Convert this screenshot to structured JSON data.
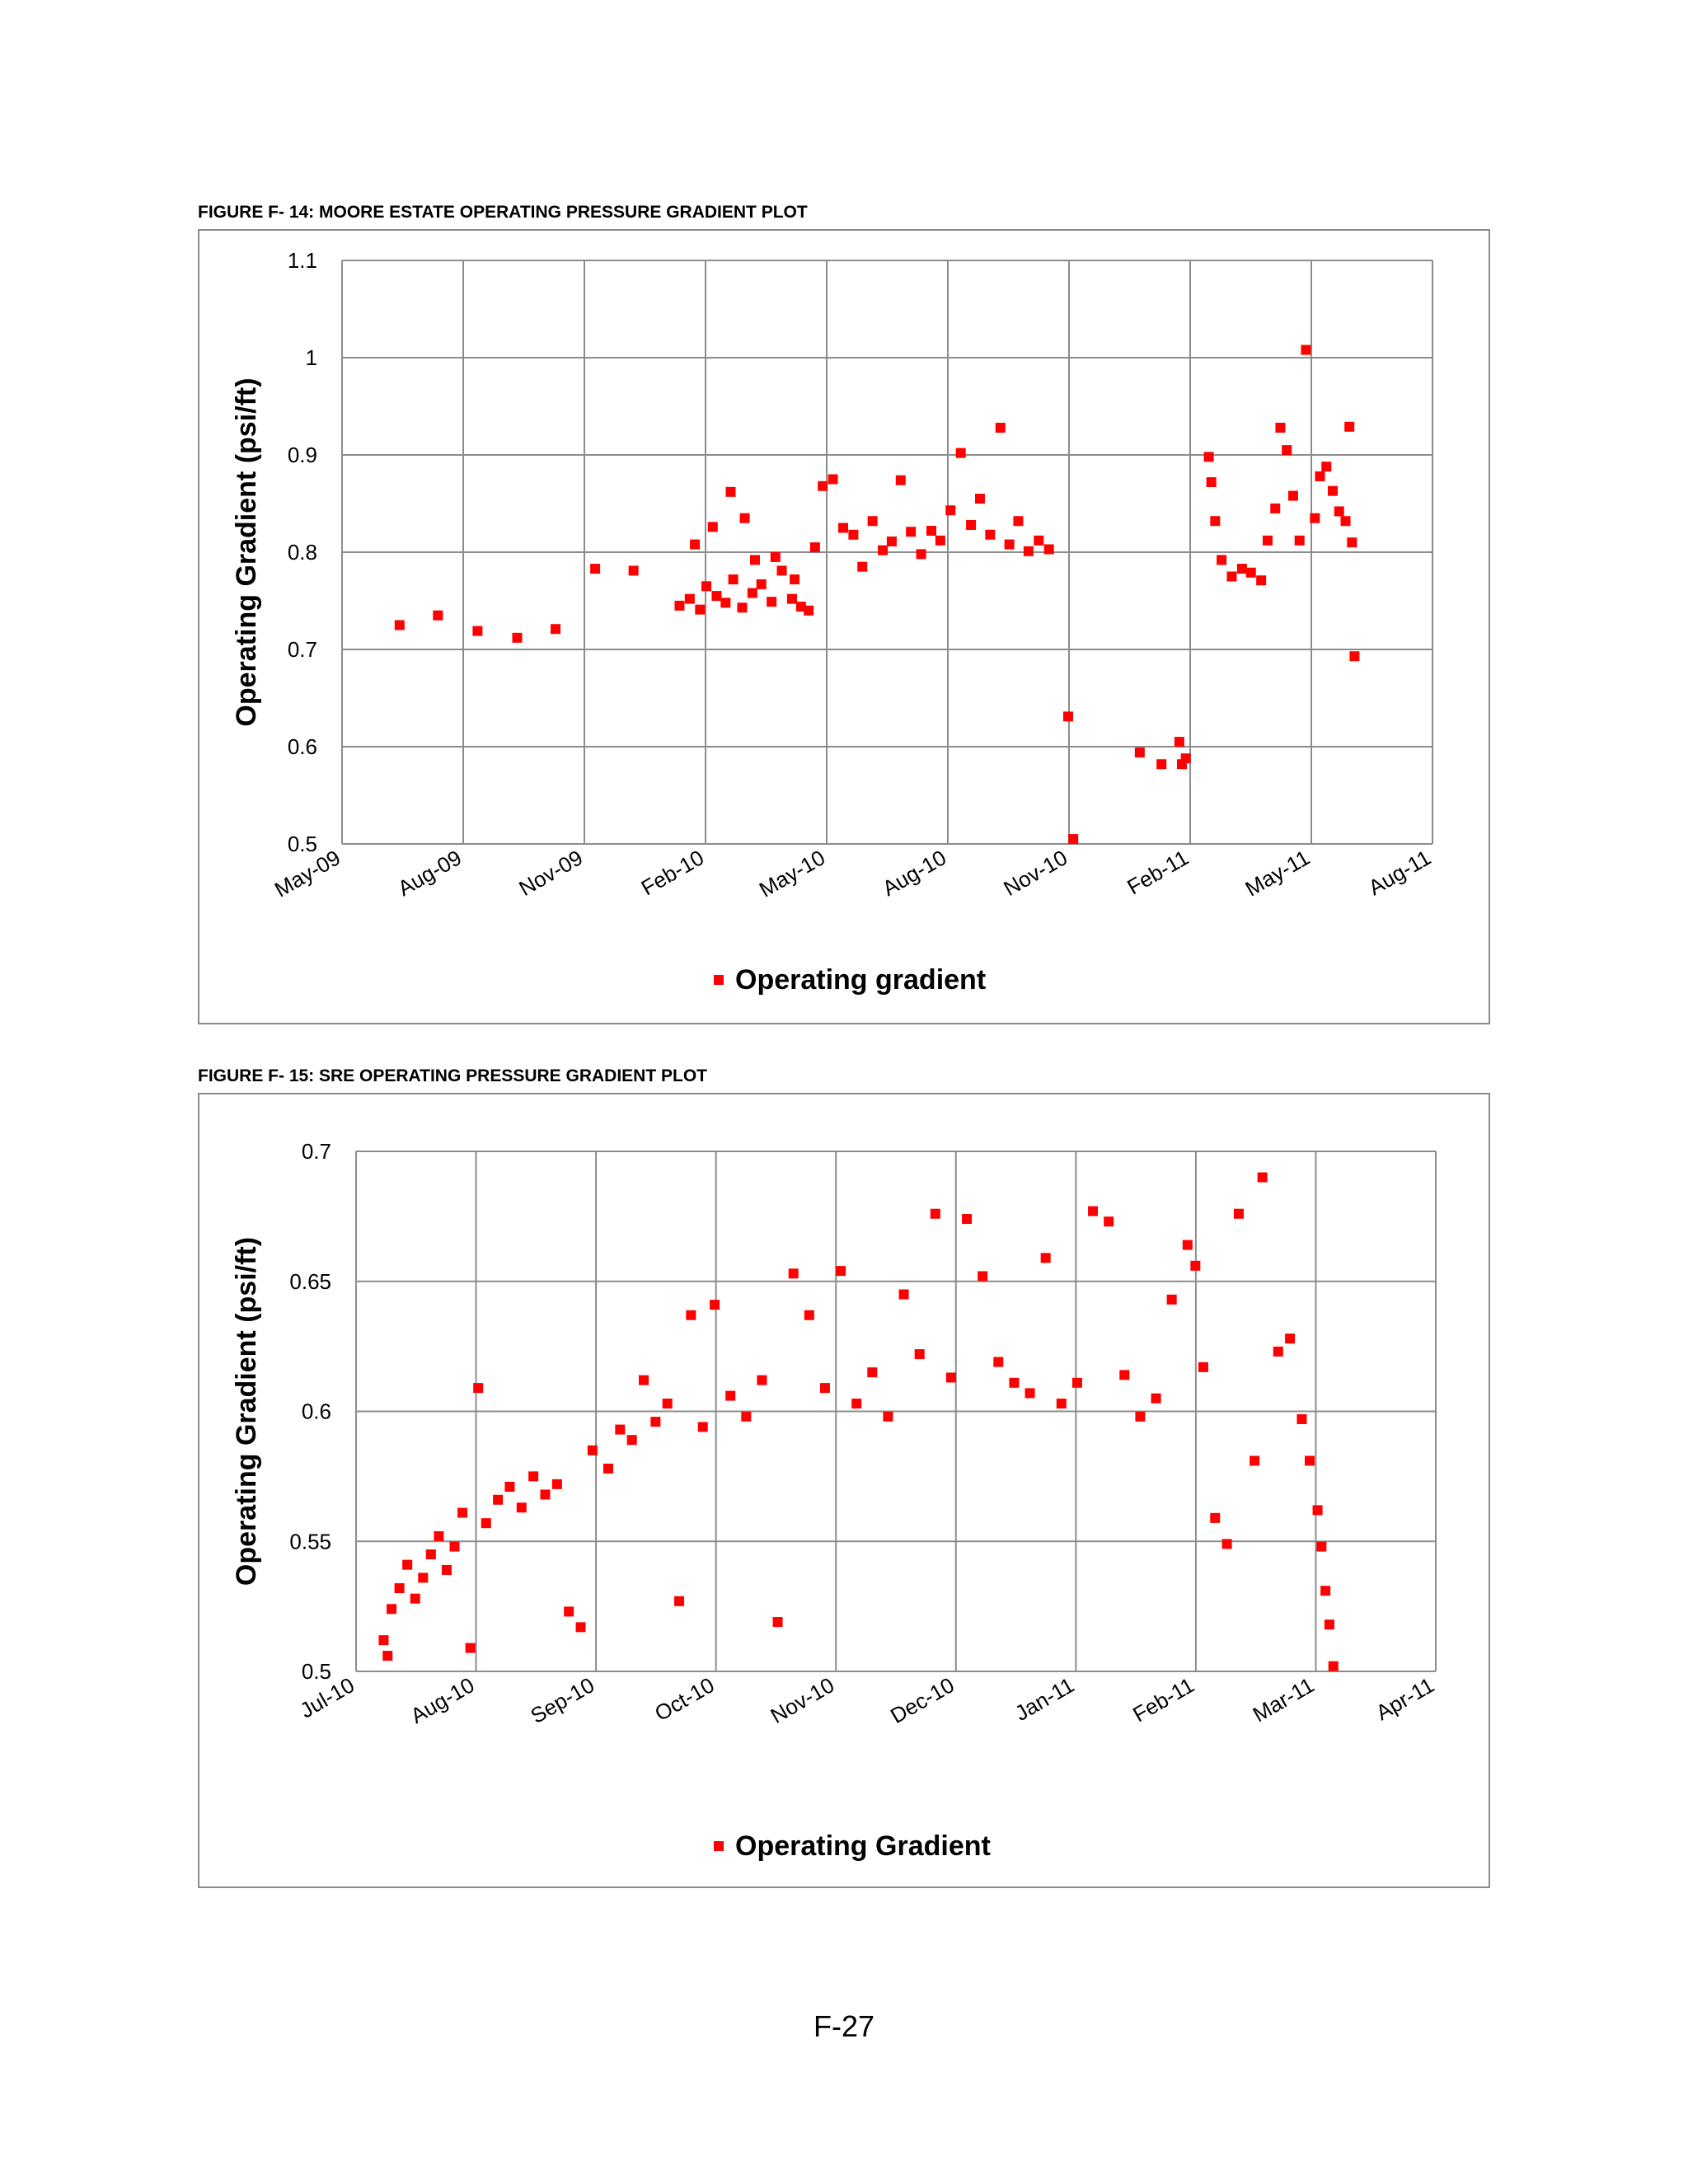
{
  "page": {
    "page_number": "F-27"
  },
  "figures": [
    {
      "caption": "FIGURE F- 14: MOORE ESTATE OPERATING PRESSURE GRADIENT PLOT"
    },
    {
      "caption": "FIGURE F- 15: SRE OPERATING PRESSURE GRADIENT PLOT"
    }
  ],
  "colors": {
    "series": "#ff0000",
    "grid": "#8c8c8c",
    "frame": "#8c8c8c"
  },
  "chart_data": [
    {
      "type": "scatter",
      "title": "",
      "xlabel": "",
      "ylabel": "Operating Gradient (psi/ft)",
      "ylim": [
        0.5,
        1.1
      ],
      "yticks": [
        "0.5",
        "0.6",
        "0.7",
        "0.8",
        "0.9",
        "1",
        "1.1"
      ],
      "xlim": [
        "2009-05",
        "2011-09"
      ],
      "xticks": [
        "May-09",
        "Aug-09",
        "Nov-09",
        "Feb-10",
        "May-10",
        "Aug-10",
        "Nov-10",
        "Feb-11",
        "May-11",
        "Aug-11"
      ],
      "grid": true,
      "legend_position": "bottom",
      "series": [
        {
          "name": "Operating gradient",
          "marker": "square",
          "points": [
            [
              "2009-06-15",
              0.725
            ],
            [
              "2009-07-15",
              0.735
            ],
            [
              "2009-08-15",
              0.719
            ],
            [
              "2009-09-15",
              0.712
            ],
            [
              "2009-10-15",
              0.721
            ],
            [
              "2009-11-15",
              0.783
            ],
            [
              "2009-12-15",
              0.781
            ],
            [
              "2010-01-20",
              0.745
            ],
            [
              "2010-01-28",
              0.752
            ],
            [
              "2010-02-05",
              0.741
            ],
            [
              "2010-02-10",
              0.765
            ],
            [
              "2010-02-18",
              0.755
            ],
            [
              "2010-02-25",
              0.748
            ],
            [
              "2010-03-03",
              0.772
            ],
            [
              "2010-03-10",
              0.743
            ],
            [
              "2010-03-18",
              0.758
            ],
            [
              "2010-03-25",
              0.767
            ],
            [
              "2010-04-02",
              0.749
            ],
            [
              "2010-04-10",
              0.781
            ],
            [
              "2010-04-18",
              0.752
            ],
            [
              "2010-04-25",
              0.744
            ],
            [
              "2010-02-01",
              0.808
            ],
            [
              "2010-02-15",
              0.826
            ],
            [
              "2010-03-01",
              0.862
            ],
            [
              "2010-03-12",
              0.835
            ],
            [
              "2010-03-20",
              0.792
            ],
            [
              "2010-04-05",
              0.795
            ],
            [
              "2010-04-20",
              0.772
            ],
            [
              "2010-05-01",
              0.74
            ],
            [
              "2010-05-06",
              0.805
            ],
            [
              "2010-05-12",
              0.868
            ],
            [
              "2010-05-20",
              0.875
            ],
            [
              "2010-05-28",
              0.825
            ],
            [
              "2010-06-05",
              0.818
            ],
            [
              "2010-06-12",
              0.785
            ],
            [
              "2010-06-20",
              0.832
            ],
            [
              "2010-06-28",
              0.802
            ],
            [
              "2010-07-05",
              0.811
            ],
            [
              "2010-07-12",
              0.874
            ],
            [
              "2010-07-20",
              0.821
            ],
            [
              "2010-07-28",
              0.798
            ],
            [
              "2010-08-05",
              0.822
            ],
            [
              "2010-08-12",
              0.812
            ],
            [
              "2010-08-20",
              0.843
            ],
            [
              "2010-08-28",
              0.902
            ],
            [
              "2010-09-05",
              0.828
            ],
            [
              "2010-09-12",
              0.855
            ],
            [
              "2010-09-20",
              0.818
            ],
            [
              "2010-09-28",
              0.928
            ],
            [
              "2010-10-05",
              0.808
            ],
            [
              "2010-10-12",
              0.832
            ],
            [
              "2010-10-20",
              0.801
            ],
            [
              "2010-10-28",
              0.812
            ],
            [
              "2010-11-05",
              0.803
            ],
            [
              "2010-11-20",
              0.631
            ],
            [
              "2010-11-24",
              0.505
            ],
            [
              "2011-01-15",
              0.594
            ],
            [
              "2011-02-01",
              0.582
            ],
            [
              "2011-02-15",
              0.605
            ],
            [
              "2011-02-17",
              0.582
            ],
            [
              "2011-02-20",
              0.588
            ],
            [
              "2011-03-10",
              0.898
            ],
            [
              "2011-03-12",
              0.872
            ],
            [
              "2011-03-15",
              0.832
            ],
            [
              "2011-03-20",
              0.792
            ],
            [
              "2011-03-28",
              0.775
            ],
            [
              "2011-04-05",
              0.783
            ],
            [
              "2011-04-12",
              0.779
            ],
            [
              "2011-04-20",
              0.771
            ],
            [
              "2011-04-25",
              0.812
            ],
            [
              "2011-05-01",
              0.845
            ],
            [
              "2011-05-05",
              0.928
            ],
            [
              "2011-05-10",
              0.905
            ],
            [
              "2011-05-15",
              0.858
            ],
            [
              "2011-05-20",
              0.812
            ],
            [
              "2011-05-25",
              1.008
            ],
            [
              "2011-06-01",
              0.835
            ],
            [
              "2011-06-05",
              0.878
            ],
            [
              "2011-06-10",
              0.888
            ],
            [
              "2011-06-15",
              0.863
            ],
            [
              "2011-06-20",
              0.842
            ],
            [
              "2011-06-25",
              0.832
            ],
            [
              "2011-06-28",
              0.929
            ],
            [
              "2011-06-30",
              0.81
            ],
            [
              "2011-07-02",
              0.693
            ]
          ]
        }
      ]
    },
    {
      "type": "scatter",
      "title": "",
      "xlabel": "",
      "ylabel": "Operating Gradient (psi/ft)",
      "ylim": [
        0.5,
        0.7
      ],
      "yticks": [
        "0.5",
        "0.55",
        "0.6",
        "0.65",
        "0.7"
      ],
      "xlim": [
        "2010-07",
        "2011-04"
      ],
      "xticks": [
        "Jul-10",
        "Aug-10",
        "Sep-10",
        "Oct-10",
        "Nov-10",
        "Dec-10",
        "Jan-11",
        "Feb-11",
        "Mar-11",
        "Apr-11"
      ],
      "grid": true,
      "legend_position": "bottom",
      "series": [
        {
          "name": "Operating Gradient",
          "marker": "square",
          "points": [
            [
              "2010-07-08",
              0.512
            ],
            [
              "2010-07-09",
              0.506
            ],
            [
              "2010-07-10",
              0.524
            ],
            [
              "2010-07-12",
              0.532
            ],
            [
              "2010-07-14",
              0.541
            ],
            [
              "2010-07-16",
              0.528
            ],
            [
              "2010-07-18",
              0.536
            ],
            [
              "2010-07-20",
              0.545
            ],
            [
              "2010-07-22",
              0.552
            ],
            [
              "2010-07-24",
              0.539
            ],
            [
              "2010-07-26",
              0.548
            ],
            [
              "2010-07-28",
              0.561
            ],
            [
              "2010-07-30",
              0.509
            ],
            [
              "2010-08-01",
              0.609
            ],
            [
              "2010-08-03",
              0.557
            ],
            [
              "2010-08-06",
              0.566
            ],
            [
              "2010-08-09",
              0.571
            ],
            [
              "2010-08-12",
              0.563
            ],
            [
              "2010-08-15",
              0.575
            ],
            [
              "2010-08-18",
              0.568
            ],
            [
              "2010-08-21",
              0.572
            ],
            [
              "2010-08-24",
              0.523
            ],
            [
              "2010-08-27",
              0.517
            ],
            [
              "2010-08-30",
              0.585
            ],
            [
              "2010-09-03",
              0.578
            ],
            [
              "2010-09-06",
              0.593
            ],
            [
              "2010-09-09",
              0.589
            ],
            [
              "2010-09-12",
              0.612
            ],
            [
              "2010-09-15",
              0.596
            ],
            [
              "2010-09-18",
              0.603
            ],
            [
              "2010-09-21",
              0.527
            ],
            [
              "2010-09-24",
              0.637
            ],
            [
              "2010-09-27",
              0.594
            ],
            [
              "2010-09-30",
              0.641
            ],
            [
              "2010-10-04",
              0.606
            ],
            [
              "2010-10-08",
              0.598
            ],
            [
              "2010-10-12",
              0.612
            ],
            [
              "2010-10-16",
              0.519
            ],
            [
              "2010-10-20",
              0.653
            ],
            [
              "2010-10-24",
              0.637
            ],
            [
              "2010-10-28",
              0.609
            ],
            [
              "2010-11-01",
              0.654
            ],
            [
              "2010-11-05",
              0.603
            ],
            [
              "2010-11-09",
              0.615
            ],
            [
              "2010-11-13",
              0.598
            ],
            [
              "2010-11-17",
              0.645
            ],
            [
              "2010-11-21",
              0.622
            ],
            [
              "2010-11-25",
              0.676
            ],
            [
              "2010-11-29",
              0.613
            ],
            [
              "2010-12-03",
              0.674
            ],
            [
              "2010-12-07",
              0.652
            ],
            [
              "2010-12-11",
              0.619
            ],
            [
              "2010-12-15",
              0.611
            ],
            [
              "2010-12-19",
              0.607
            ],
            [
              "2010-12-23",
              0.659
            ],
            [
              "2010-12-27",
              0.603
            ],
            [
              "2010-12-31",
              0.611
            ],
            [
              "2011-01-04",
              0.677
            ],
            [
              "2011-01-08",
              0.673
            ],
            [
              "2011-01-12",
              0.614
            ],
            [
              "2011-01-16",
              0.598
            ],
            [
              "2011-01-20",
              0.605
            ],
            [
              "2011-01-24",
              0.643
            ],
            [
              "2011-01-28",
              0.664
            ],
            [
              "2011-01-30",
              0.656
            ],
            [
              "2011-02-01",
              0.617
            ],
            [
              "2011-02-04",
              0.559
            ],
            [
              "2011-02-07",
              0.549
            ],
            [
              "2011-02-10",
              0.676
            ],
            [
              "2011-02-14",
              0.581
            ],
            [
              "2011-02-16",
              0.69
            ],
            [
              "2011-02-20",
              0.623
            ],
            [
              "2011-02-23",
              0.628
            ],
            [
              "2011-02-26",
              0.597
            ],
            [
              "2011-02-28",
              0.581
            ],
            [
              "2011-03-02",
              0.562
            ],
            [
              "2011-03-03",
              0.548
            ],
            [
              "2011-03-04",
              0.531
            ],
            [
              "2011-03-05",
              0.518
            ],
            [
              "2011-03-06",
              0.502
            ]
          ]
        }
      ]
    }
  ]
}
